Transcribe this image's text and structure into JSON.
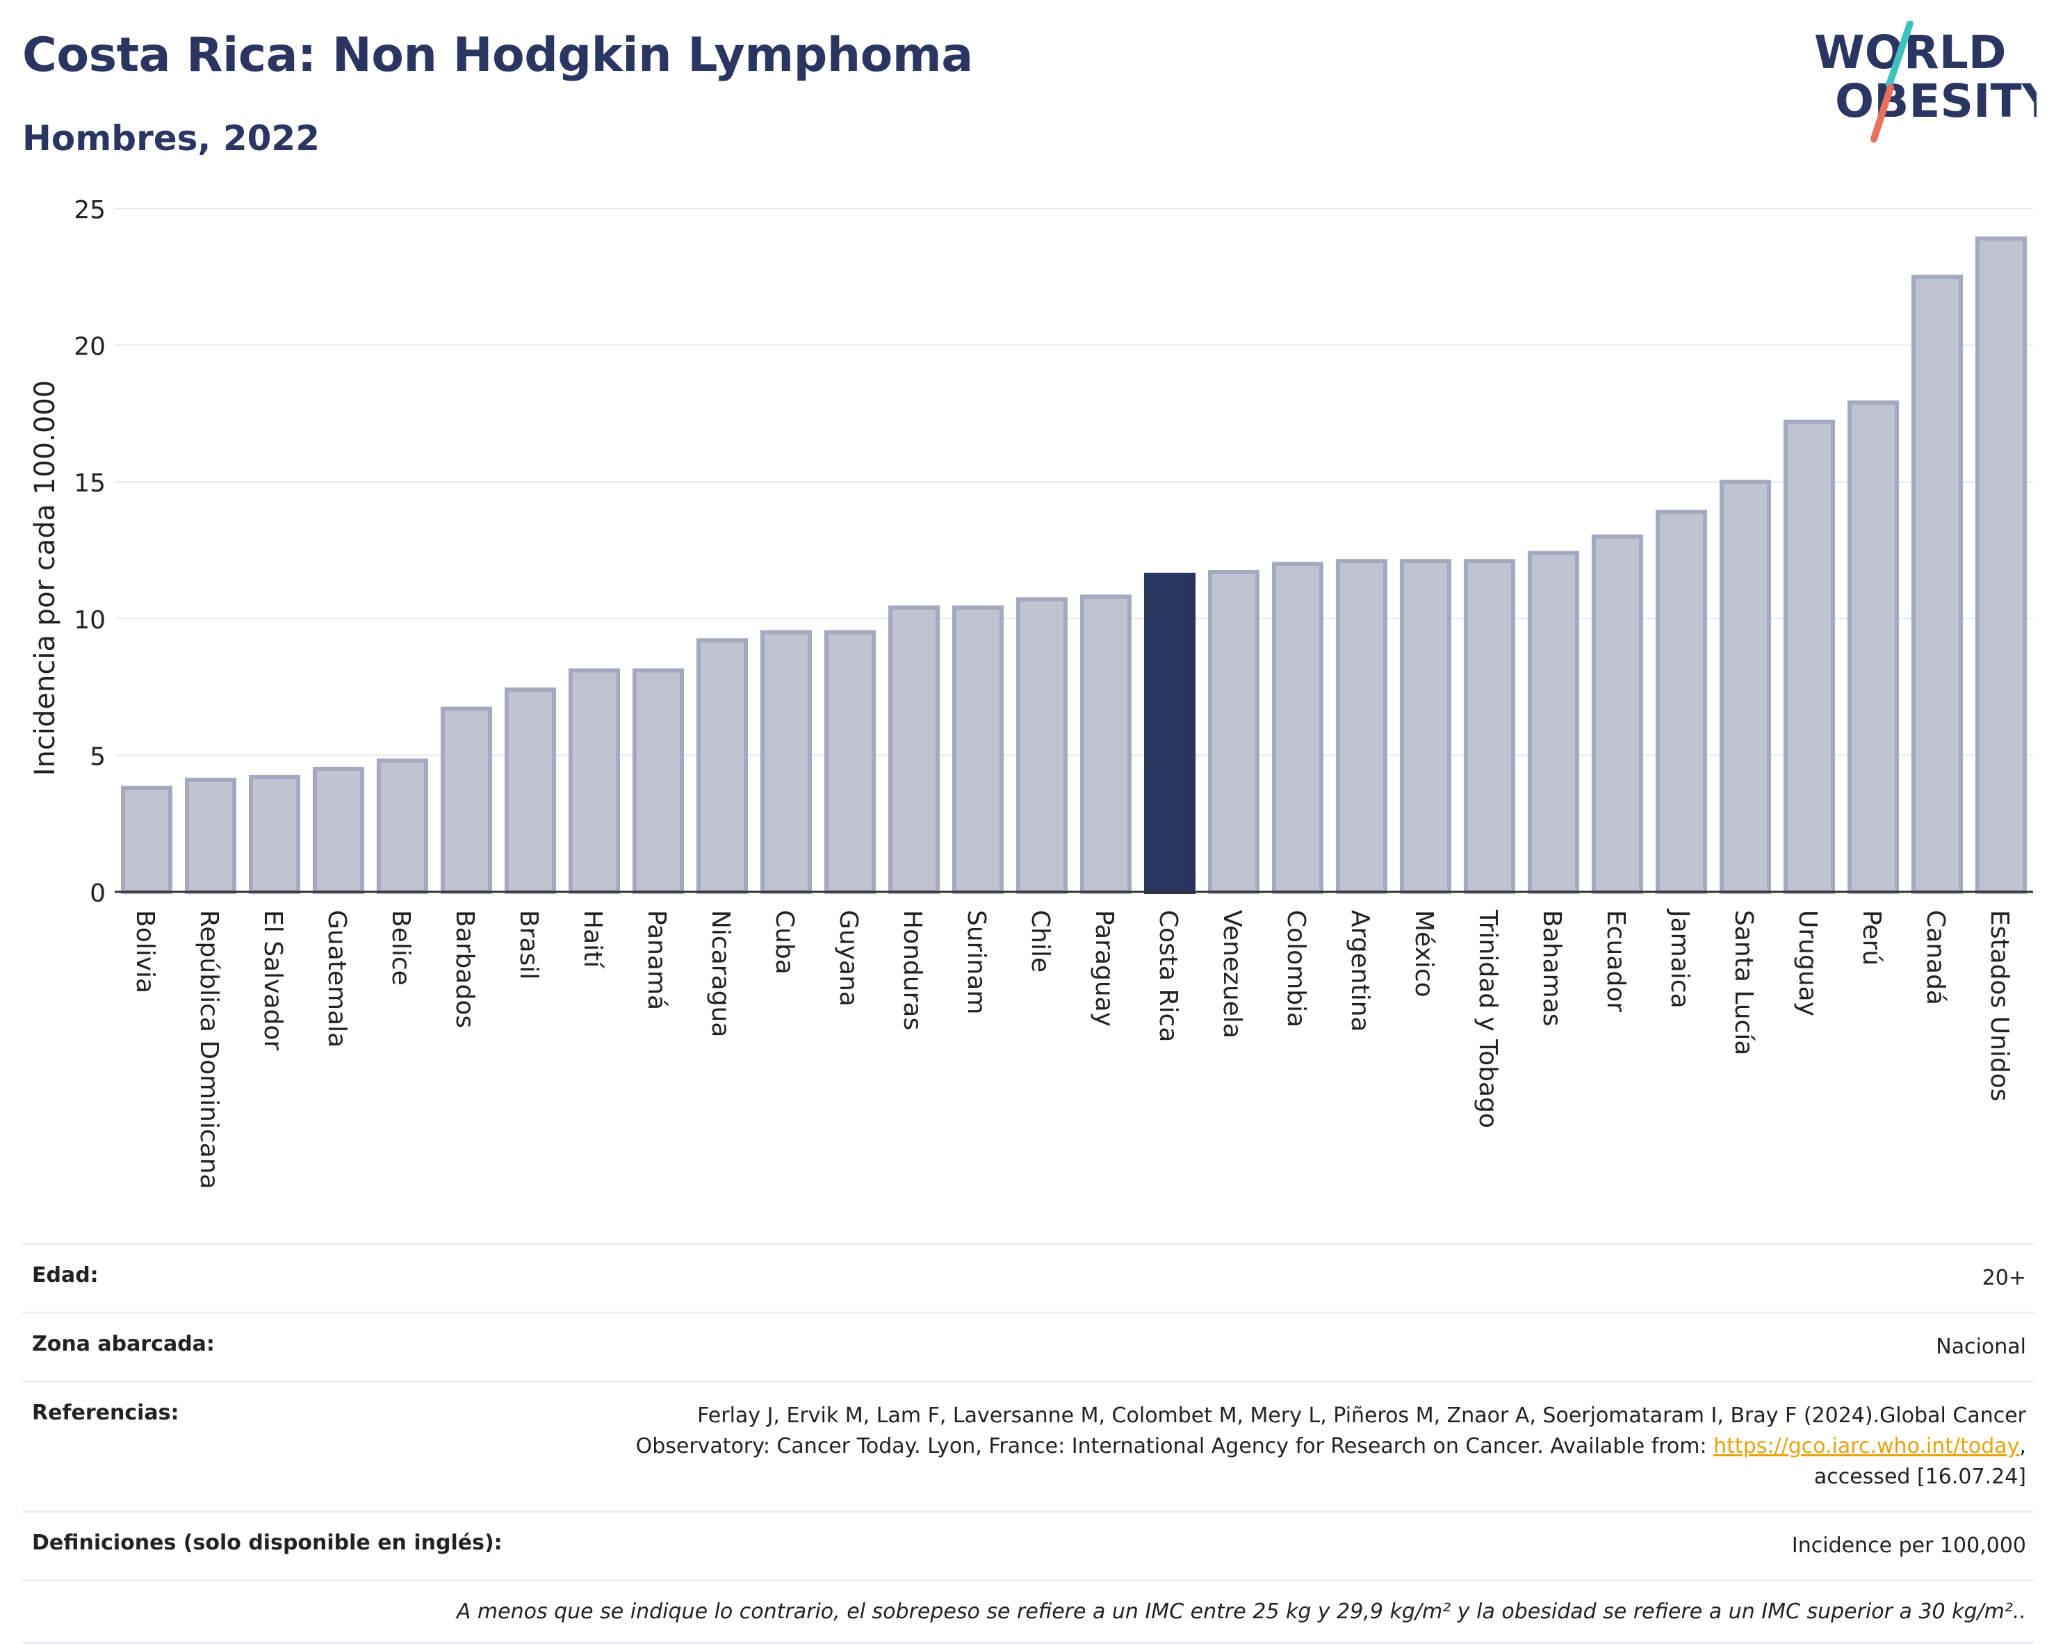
{
  "header": {
    "title": "Costa Rica: Non Hodgkin Lymphoma",
    "subtitle": "Hombres, 2022",
    "logo_text_line1": "WORLD",
    "logo_text_line2": "OBESITY"
  },
  "colors": {
    "title": "#2a3561",
    "bar": "#c0c3d0",
    "bar_border": "#a4a9c0",
    "highlight": "#2a3561",
    "logo_teal": "#3fc1c0",
    "logo_coral": "#e8705f"
  },
  "chart_data": {
    "type": "bar",
    "ylabel": "Incidencia por cada 100.000",
    "ylim": [
      0,
      25
    ],
    "yticks": [
      0,
      5,
      10,
      15,
      20,
      25
    ],
    "grid": true,
    "highlight": "Costa Rica",
    "categories": [
      "Bolivia",
      "República Dominicana",
      "El Salvador",
      "Guatemala",
      "Belice",
      "Barbados",
      "Brasil",
      "Haití",
      "Panamá",
      "Nicaragua",
      "Cuba",
      "Guyana",
      "Honduras",
      "Surinam",
      "Chile",
      "Paraguay",
      "Costa Rica",
      "Venezuela",
      "Colombia",
      "Argentina",
      "México",
      "Trinidad y Tobago",
      "Bahamas",
      "Ecuador",
      "Jamaica",
      "Santa Lucía",
      "Uruguay",
      "Perú",
      "Canadá",
      "Estados Unidos"
    ],
    "values": [
      3.8,
      4.1,
      4.2,
      4.5,
      4.8,
      6.7,
      7.4,
      8.1,
      8.1,
      9.2,
      9.5,
      9.5,
      10.4,
      10.4,
      10.7,
      10.8,
      11.6,
      11.7,
      12.0,
      12.1,
      12.1,
      12.1,
      12.4,
      13.0,
      13.9,
      15.0,
      17.2,
      17.9,
      22.5,
      23.9
    ]
  },
  "info": {
    "age_label": "Edad:",
    "age_value": "20+",
    "zone_label": "Zona abarcada:",
    "zone_value": "Nacional",
    "ref_label": "Referencias:",
    "ref_text_1": "Ferlay J, Ervik M, Lam F, Laversanne M, Colombet M, Mery L, Piñeros M, Znaor A, Soerjomataram I, Bray F (2024).Global Cancer Observatory: Cancer Today. Lyon, France: International Agency for Research on Cancer. Available from: ",
    "ref_link": "https://gco.iarc.who.int/today",
    "ref_text_2": ", accessed [16.07.24]",
    "def_label": "Definiciones (solo disponible en inglés):",
    "def_value": "Incidence per 100,000",
    "footnote": "A menos que se indique lo contrario, el sobrepeso se refiere a un IMC entre 25 kg y 29,9 kg/m² y la obesidad se refiere a un IMC superior a 30 kg/m².."
  }
}
